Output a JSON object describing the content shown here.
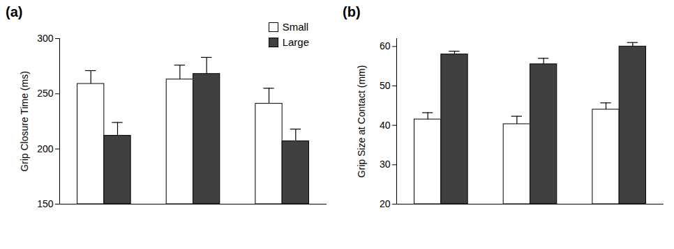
{
  "chart_data": [
    {
      "type": "bar",
      "title": "(a)",
      "y_label": "Grip Closure Time (ms)",
      "categories": [
        null,
        null,
        null
      ],
      "series": [
        {
          "name": "Small",
          "color": "#ffffff",
          "values": [
            259,
            263,
            241
          ],
          "errors": [
            12,
            13,
            14
          ]
        },
        {
          "name": "Large",
          "color": "#404040",
          "values": [
            212,
            268,
            207
          ],
          "errors": [
            12,
            15,
            11
          ]
        }
      ],
      "ylim": [
        150,
        300
      ],
      "yticks": [
        150,
        200,
        250,
        300
      ],
      "grid": false,
      "legend": "top-right"
    },
    {
      "type": "bar",
      "title": "(b)",
      "y_label": "Grip Size at Contact (mm)",
      "categories": [
        null,
        null,
        null
      ],
      "series": [
        {
          "name": "Small",
          "color": "#ffffff",
          "values": [
            41.5,
            40.3,
            44
          ],
          "errors": [
            1.7,
            2,
            1.7
          ]
        },
        {
          "name": "Large",
          "color": "#404040",
          "values": [
            58,
            55.5,
            60
          ],
          "errors": [
            0.8,
            1.5,
            1
          ]
        }
      ],
      "ylim": [
        20,
        62
      ],
      "yticks": [
        20,
        30,
        40,
        50,
        60
      ],
      "grid": false,
      "legend": false
    }
  ]
}
